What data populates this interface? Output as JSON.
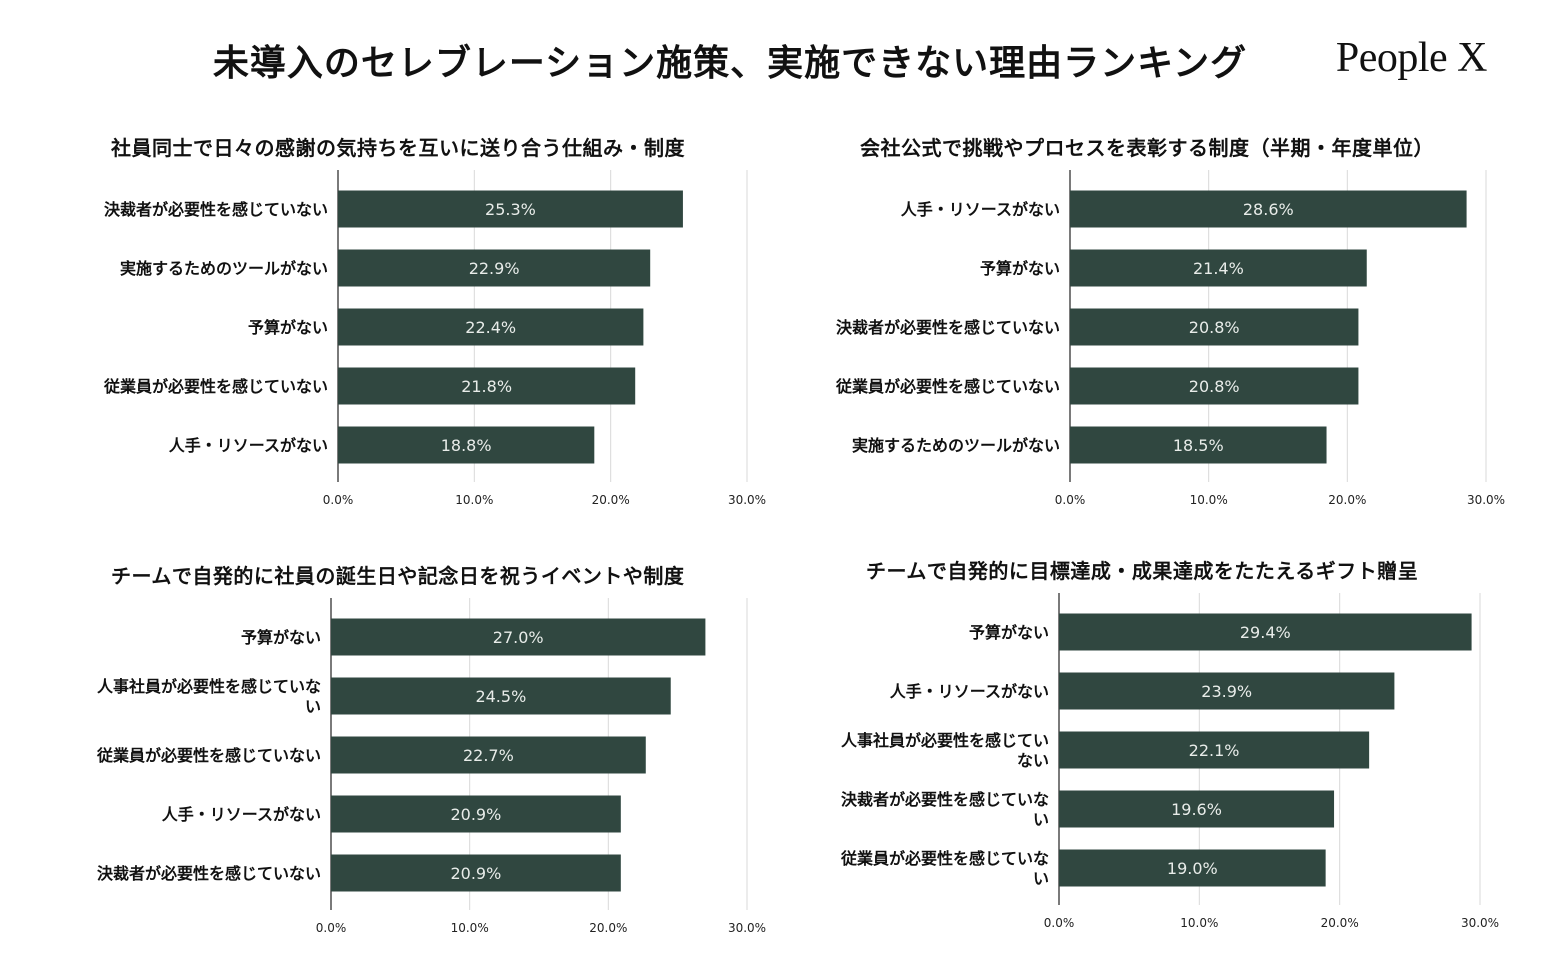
{
  "header": {
    "title": "未導入のセレブレーション施策、実施できない理由ランキング",
    "brand": "People X"
  },
  "colors": {
    "bar": "#304740",
    "grid": "#d9d9d9",
    "axis": "#333333",
    "value_text": "#e8ece9"
  },
  "chart_data": [
    {
      "type": "bar",
      "orientation": "horizontal",
      "title": "社員同士で日々の感謝の気持ちを互いに送り合う仕組み・制度",
      "categories": [
        [
          "決裁者が必要性を感じていない"
        ],
        [
          "実施するためのツールがない"
        ],
        [
          "予算がない"
        ],
        [
          "従業員が必要性を感じていない"
        ],
        [
          "人手・リソースがない"
        ]
      ],
      "values": [
        25.3,
        22.9,
        22.4,
        21.8,
        18.8
      ],
      "value_labels": [
        "25.3%",
        "22.9%",
        "22.4%",
        "21.8%",
        "18.8%"
      ],
      "xlim": [
        0,
        30
      ],
      "ticks": [
        "0.0%",
        "10.0%",
        "20.0%",
        "30.0%"
      ]
    },
    {
      "type": "bar",
      "orientation": "horizontal",
      "title": "会社公式で挑戦やプロセスを表彰する制度（半期・年度単位）",
      "categories": [
        [
          "人手・リソースがない"
        ],
        [
          "予算がない"
        ],
        [
          "決裁者が必要性を感じていない"
        ],
        [
          "従業員が必要性を感じていない"
        ],
        [
          "実施するためのツールがない"
        ]
      ],
      "values": [
        28.6,
        21.4,
        20.8,
        20.8,
        18.5
      ],
      "value_labels": [
        "28.6%",
        "21.4%",
        "20.8%",
        "20.8%",
        "18.5%"
      ],
      "xlim": [
        0,
        30
      ],
      "ticks": [
        "0.0%",
        "10.0%",
        "20.0%",
        "30.0%"
      ]
    },
    {
      "type": "bar",
      "orientation": "horizontal",
      "title": "チームで自発的に社員の誕生日や記念日を祝うイベントや制度",
      "categories": [
        [
          "予算がない"
        ],
        [
          "人事社員が必要性を感じていな",
          "い"
        ],
        [
          "従業員が必要性を感じていない"
        ],
        [
          "人手・リソースがない"
        ],
        [
          "決裁者が必要性を感じていない"
        ]
      ],
      "values": [
        27.0,
        24.5,
        22.7,
        20.9,
        20.9
      ],
      "value_labels": [
        "27.0%",
        "24.5%",
        "22.7%",
        "20.9%",
        "20.9%"
      ],
      "xlim": [
        0,
        30
      ],
      "ticks": [
        "0.0%",
        "10.0%",
        "20.0%",
        "30.0%"
      ]
    },
    {
      "type": "bar",
      "orientation": "horizontal",
      "title": "チームで自発的に目標達成・成果達成をたたえるギフト贈呈",
      "categories": [
        [
          "予算がない"
        ],
        [
          "人手・リソースがない"
        ],
        [
          "人事社員が必要性を感じてい",
          "ない"
        ],
        [
          "決裁者が必要性を感じていな",
          "い"
        ],
        [
          "従業員が必要性を感じていな",
          "い"
        ]
      ],
      "values": [
        29.4,
        23.9,
        22.1,
        19.6,
        19.0
      ],
      "value_labels": [
        "29.4%",
        "23.9%",
        "22.1%",
        "19.6%",
        "19.0%"
      ],
      "xlim": [
        0,
        30
      ],
      "ticks": [
        "0.0%",
        "10.0%",
        "20.0%",
        "30.0%"
      ]
    }
  ]
}
